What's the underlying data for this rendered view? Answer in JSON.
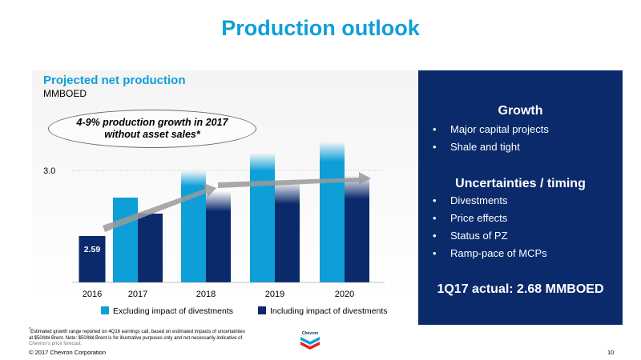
{
  "slide": {
    "title": "Production outlook",
    "copyright": "© 2017 Chevron Corporation",
    "page_number": "10",
    "logo_text": "Chevron",
    "footnote": {
      "line1": "Estimated growth range reported on 4Q16 earnings call, based on estimated impacts of uncertainties",
      "line2": "at $50/bbl Brent.  Note: $50/bbl Brent is for illustrative purposes only and not necessarily indicative of",
      "line3": "Chevron’s price forecast.",
      "marker": "*"
    }
  },
  "chart": {
    "title": "Projected net production",
    "unit": "MMBOED",
    "callout_line1": "4-9% production growth in 2017",
    "callout_line2": "without asset sales*",
    "colors": {
      "excluding": "#0e9fd8",
      "including": "#0b2a6b",
      "arrow": "#9a9a9a"
    }
  },
  "chart_data": {
    "type": "bar",
    "categories": [
      "2016",
      "2017",
      "2018",
      "2019",
      "2020"
    ],
    "series": [
      {
        "name": "Excluding impact of divestments",
        "values": [
          null,
          2.83,
          3.0,
          3.11,
          3.18
        ]
      },
      {
        "name": "Including impact of divestments",
        "values": [
          2.59,
          2.73,
          2.87,
          2.93,
          2.97
        ]
      }
    ],
    "bar_labels": [
      {
        "category": "2016",
        "text": "2.59"
      }
    ],
    "yticks": [
      {
        "value": 3.0,
        "label": "3.0"
      }
    ],
    "ylim": [
      2.3,
      3.25
    ],
    "legend_position": "bottom",
    "grid": false
  },
  "right_panel": {
    "growth_heading": "Growth",
    "growth_items": [
      "Major capital projects",
      "Shale and tight"
    ],
    "uncertainty_heading": "Uncertainties / timing",
    "uncertainty_items": [
      "Divestments",
      "Price effects",
      "Status of PZ",
      "Ramp-pace of MCPs"
    ],
    "actual": "1Q17 actual: 2.68 MMBOED",
    "bullet": "•"
  }
}
